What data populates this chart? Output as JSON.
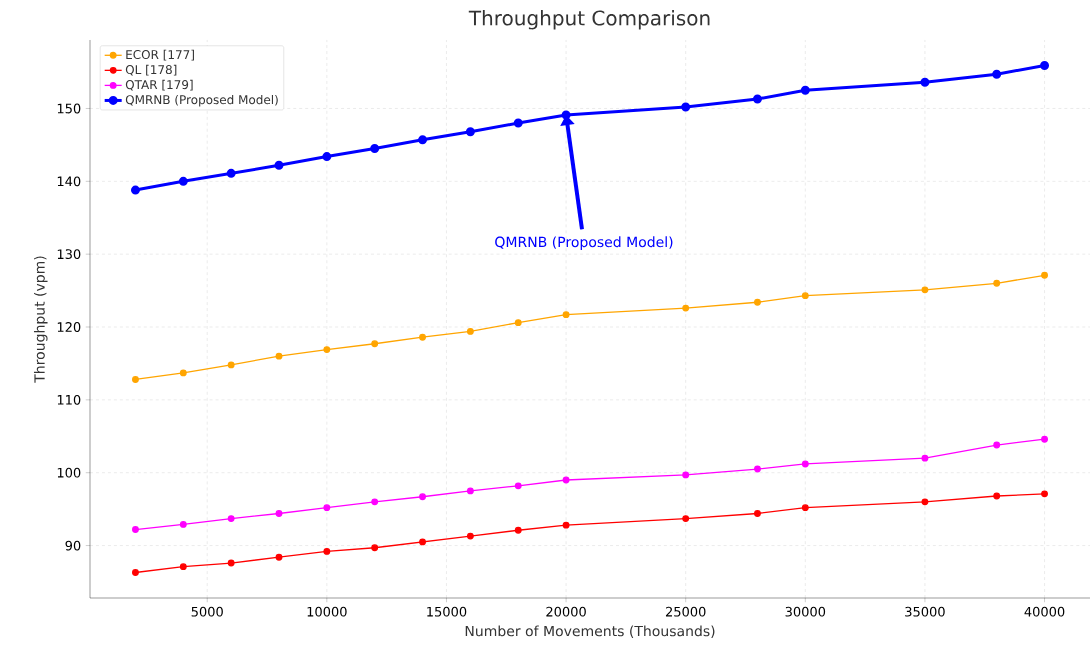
{
  "chart_data": {
    "type": "line",
    "title": "Throughput Comparison",
    "xlabel": "Number of Movements (Thousands)",
    "ylabel": "Throughput (vpm)",
    "x": [
      2000,
      4000,
      6000,
      8000,
      10000,
      12000,
      14000,
      16000,
      18000,
      20000,
      25000,
      28000,
      30000,
      35000,
      38000,
      40000
    ],
    "series": [
      {
        "name": "ECOR [177]",
        "color": "#ffa500",
        "values": [
          112.8,
          113.7,
          114.8,
          116,
          116.9,
          117.7,
          118.6,
          119.4,
          120.6,
          121.7,
          122.6,
          123.4,
          124.3,
          125.1,
          126,
          127.1
        ]
      },
      {
        "name": "QL [178]",
        "color": "#ff0000",
        "values": [
          86.3,
          87.1,
          87.6,
          88.4,
          89.2,
          89.7,
          90.5,
          91.3,
          92.1,
          92.8,
          93.7,
          94.4,
          95.2,
          96.0,
          96.8,
          97.1
        ]
      },
      {
        "name": "QTAR [179]",
        "color": "#ff00ff",
        "values": [
          92.2,
          92.9,
          93.7,
          94.4,
          95.2,
          96,
          96.7,
          97.5,
          98.2,
          99,
          99.7,
          100.5,
          101.2,
          102,
          103.8,
          104.6
        ]
      },
      {
        "name": "QMRNB (Proposed Model)",
        "color": "#0000ff",
        "values": [
          138.8,
          140,
          141.1,
          142.2,
          143.4,
          144.5,
          145.7,
          146.8,
          148,
          149.1,
          150.2,
          151.3,
          152.5,
          153.6,
          154.7,
          155.9
        ]
      }
    ],
    "annotations": [
      {
        "text": "QMRNB (Proposed Model)",
        "x": 20000,
        "y": 149.1
      }
    ],
    "xlim": [
      100,
      41900
    ],
    "ylim": [
      82.8,
      159.4
    ],
    "xticks": [
      5000,
      10000,
      15000,
      20000,
      25000,
      30000,
      35000,
      40000
    ],
    "yticks": [
      90,
      100,
      110,
      120,
      130,
      140,
      150
    ],
    "grid": true,
    "legend": "top left",
    "marker": "circle",
    "line_style": "solid"
  }
}
